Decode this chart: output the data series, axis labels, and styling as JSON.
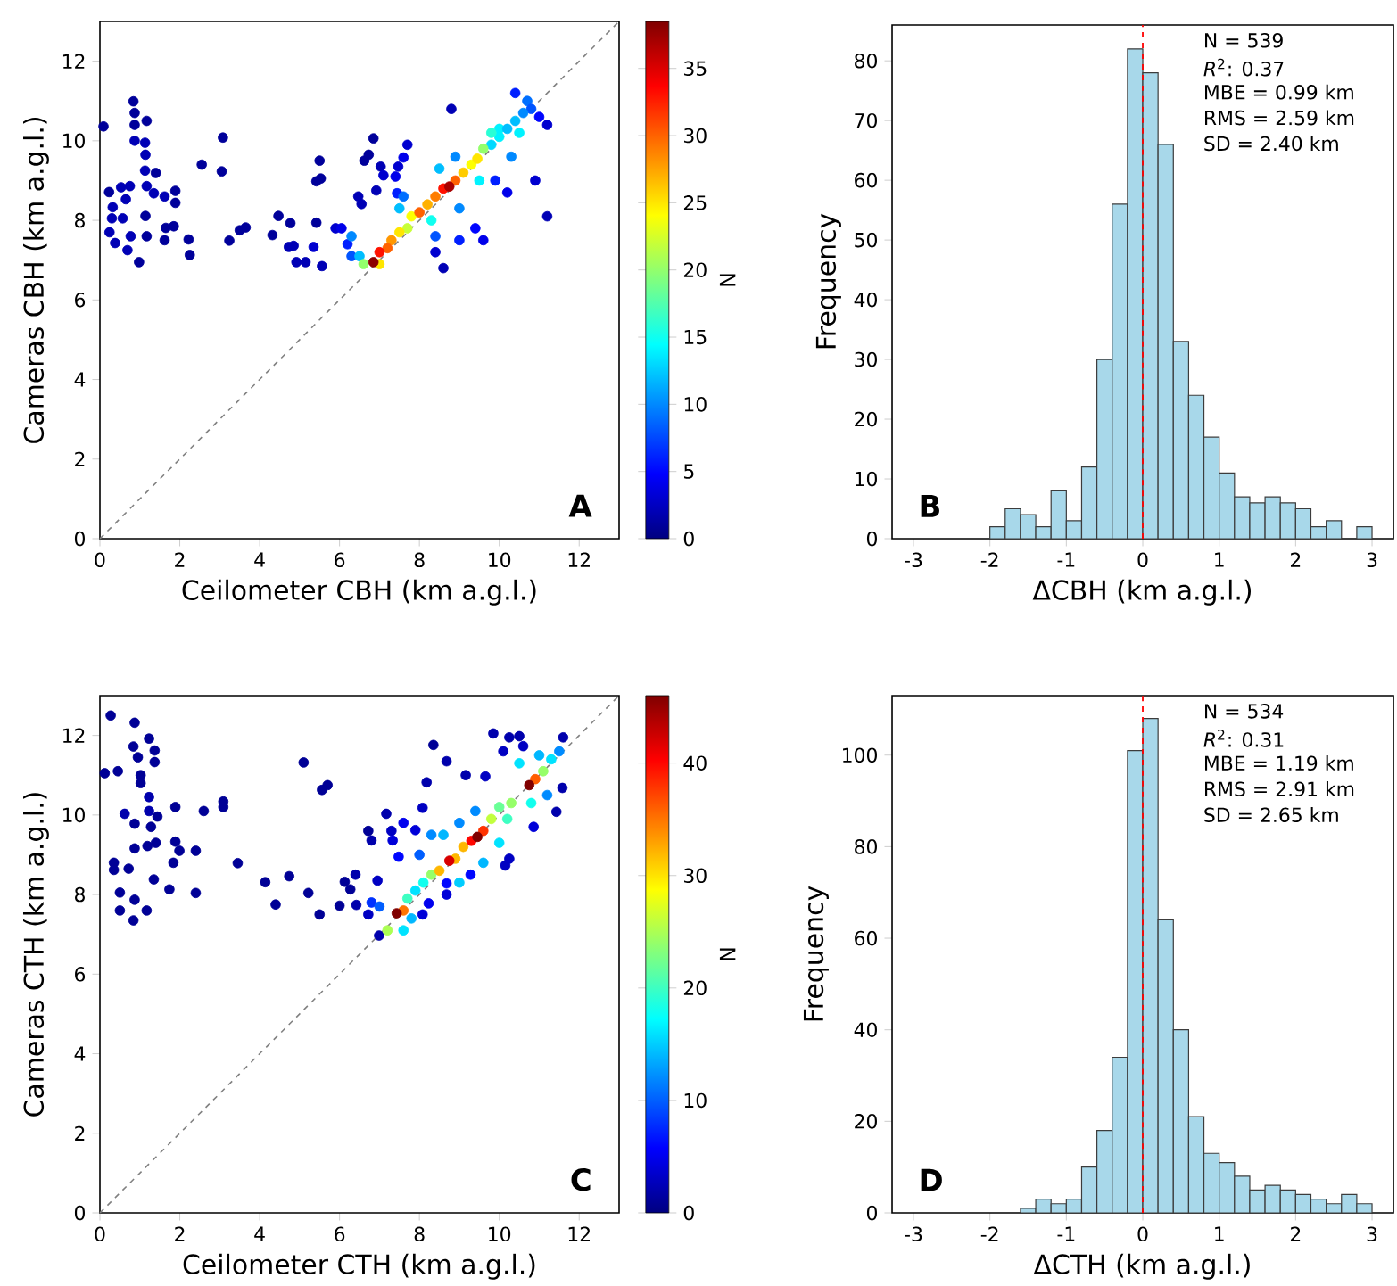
{
  "chart_data": [
    {
      "type": "scatter",
      "xlabel": "Ceilometer CBH (km a.g.l.)",
      "ylabel": "Cameras CBH (km a.g.l.)",
      "clabel": "N",
      "xlim": [
        0,
        13
      ],
      "ylim": [
        0,
        13
      ],
      "xticks": [
        0,
        2,
        4,
        6,
        8,
        10,
        12
      ],
      "yticks": [
        0,
        2,
        4,
        6,
        8,
        10,
        12
      ],
      "clim": [
        0,
        38.5
      ],
      "cticks": [
        0,
        5,
        10,
        15,
        20,
        25,
        30,
        35
      ],
      "marker": "circle",
      "annotations": [
        "A"
      ],
      "series": [
        {
          "type": "scatter",
          "x": [
            0.09,
            0.84,
            0.87,
            0.87,
            1.17,
            0.87,
            1.13,
            1.14,
            1.13,
            1.4,
            0.23,
            0.53,
            0.75,
            1.17,
            0.65,
            0.32,
            0.3,
            0.57,
            1.14,
            1.35,
            1.62,
            1.89,
            1.89,
            1.65,
            1.85,
            0.24,
            0.77,
            1.17,
            0.38,
            1.62,
            2.22,
            0.69,
            0.98,
            2.25,
            2.55,
            3.08,
            3.05,
            3.24,
            3.5,
            3.65,
            4.32,
            4.47,
            4.77,
            4.73,
            4.85,
            4.92,
            5.15,
            5.42,
            5.5,
            5.42,
            5.53,
            5.35,
            5.56,
            5.9,
            6.05,
            6.47,
            6.55,
            6.62,
            6.73,
            6.85,
            6.92,
            7.03,
            7.1,
            7.4,
            7.47,
            7.7,
            7.6,
            7.44,
            8.8,
            11.2,
            11.2,
            10.9,
            10.2,
            8.6,
            8.4,
            9.6,
            9.4,
            9.0,
            9.9,
            11.0,
            10.4,
            6.2,
            8.4,
            7.6,
            10.7,
            6.3,
            6.3,
            7.5,
            8.9,
            9.0,
            10.3,
            8.5,
            10.0,
            9.5,
            8.3,
            10.5,
            9.8,
            10.8,
            10.6,
            10.2,
            10.4,
            10.0,
            9.8,
            9.6,
            7.7,
            6.5,
            9.3,
            6.6,
            7.8,
            7.5,
            9.45,
            9.1,
            7.0,
            8.2,
            8.4,
            7.3,
            7.2,
            8.0,
            8.9,
            7.0,
            8.6,
            8.75,
            6.85
          ],
          "values": [
            10.36,
            10.99,
            10.7,
            10.4,
            10.5,
            10.0,
            9.95,
            9.65,
            9.25,
            9.19,
            8.71,
            8.83,
            8.86,
            8.86,
            8.53,
            8.33,
            8.05,
            8.05,
            8.11,
            8.68,
            8.6,
            8.74,
            8.44,
            7.81,
            7.85,
            7.7,
            7.6,
            7.6,
            7.43,
            7.5,
            7.52,
            7.25,
            6.95,
            7.13,
            9.4,
            10.08,
            9.23,
            7.49,
            7.75,
            7.82,
            7.63,
            8.11,
            7.93,
            7.33,
            7.36,
            6.95,
            6.95,
            7.94,
            9.5,
            8.98,
            9.05,
            7.33,
            6.85,
            7.8,
            7.8,
            8.6,
            8.41,
            9.5,
            9.65,
            10.06,
            8.75,
            9.35,
            9.13,
            9.1,
            9.35,
            9.9,
            9.58,
            8.68,
            10.8,
            8.1,
            10.4,
            9.0,
            8.7,
            6.8,
            7.2,
            7.5,
            7.8,
            7.5,
            9.0,
            10.6,
            11.2,
            7.4,
            7.6,
            8.6,
            11.0,
            7.1,
            7.6,
            8.3,
            9.6,
            8.3,
            9.6,
            9.3,
            10.3,
            9.0,
            8.0,
            10.2,
            9.9,
            10.8,
            10.7,
            10.3,
            10.5,
            10.1,
            10.2,
            9.8,
            7.8,
            7.1,
            9.4,
            6.9,
            8.1,
            7.7,
            9.55,
            9.2,
            6.9,
            8.4,
            8.6,
            7.5,
            7.3,
            8.2,
            9.0,
            7.2,
            8.8,
            8.85,
            6.95
          ],
          "colors": [
            "#00009a",
            "#00009a",
            "#00009a",
            "#00009a",
            "#00009a",
            "#0000b5",
            "#0000b5",
            "#0000b5",
            "#0000b5",
            "#00009a",
            "#00009a",
            "#0000b5",
            "#0000b5",
            "#0000b5",
            "#0000b5",
            "#0000b5",
            "#0000b5",
            "#0000b5",
            "#00009a",
            "#0000b5",
            "#0000b5",
            "#00009a",
            "#00009a",
            "#00009a",
            "#00009a",
            "#0000b5",
            "#0000b5",
            "#00009a",
            "#0000b5",
            "#00009a",
            "#00009a",
            "#0000b5",
            "#00009a",
            "#00009a",
            "#00009a",
            "#00009a",
            "#00009a",
            "#00009a",
            "#00009a",
            "#00009a",
            "#00009a",
            "#00009a",
            "#00009a",
            "#0000b5",
            "#0000b5",
            "#0000b5",
            "#0000b5",
            "#00009a",
            "#00009a",
            "#00009a",
            "#00009a",
            "#0000cf",
            "#0000b5",
            "#0000cf",
            "#0000e9",
            "#0000b5",
            "#0000b5",
            "#00009a",
            "#00009a",
            "#00009a",
            "#0000b5",
            "#0000b5",
            "#0000cf",
            "#0000e9",
            "#0000cf",
            "#0000cf",
            "#0000e9",
            "#001fff",
            "#0000b5",
            "#0000b5",
            "#0000cf",
            "#0000cf",
            "#0000e9",
            "#0000b5",
            "#0000cf",
            "#0000e9",
            "#0005ff",
            "#001fff",
            "#001fff",
            "#0005ff",
            "#001fff",
            "#001fff",
            "#0054ff",
            "#006fff",
            "#006fff",
            "#0054ff",
            "#0089ff",
            "#00beff",
            "#0089ff",
            "#0089ff",
            "#0089ff",
            "#00beff",
            "#00f3ff",
            "#00f3ff",
            "#0ffff0",
            "#00f3ff",
            "#00d9ff",
            "#0054ff",
            "#0089ff",
            "#00beff",
            "#00beff",
            "#00f3ff",
            "#29ffd6",
            "#93ff6c",
            "#c8ff37",
            "#00beff",
            "#fdff02",
            "#93ff6c",
            "#fdff02",
            "#ffe600",
            "#ffe600",
            "#ffcc00",
            "#ffe600",
            "#ffb100",
            "#ff7c00",
            "#ff9700",
            "#ff6200",
            "#ff6200",
            "#ff6200",
            "#ff1200",
            "#ff1200",
            "#a70000",
            "#8d0000"
          ],
          "cvalues": [
            1,
            1,
            1,
            1,
            1,
            2,
            2,
            2,
            2,
            1,
            1,
            2,
            2,
            2,
            2,
            2,
            2,
            2,
            1,
            2,
            2,
            1,
            1,
            1,
            1,
            2,
            2,
            1,
            2,
            1,
            1,
            2,
            1,
            1,
            1,
            1,
            1,
            1,
            1,
            1,
            1,
            1,
            1,
            2,
            2,
            2,
            2,
            1,
            1,
            1,
            1,
            3,
            2,
            3,
            4,
            2,
            2,
            1,
            1,
            1,
            2,
            2,
            3,
            4,
            3,
            3,
            4,
            6,
            2,
            2,
            3,
            3,
            4,
            2,
            3,
            4,
            5,
            6,
            6,
            5,
            6,
            6,
            8,
            9,
            9,
            8,
            10,
            12,
            10,
            10,
            10,
            12,
            14,
            14,
            15,
            14,
            13,
            8,
            10,
            12,
            12,
            14,
            16,
            20,
            22,
            12,
            24,
            20,
            24,
            25,
            25,
            26,
            25,
            27,
            29,
            28,
            30,
            30,
            30,
            33,
            33,
            37,
            38
          ]
        },
        {
          "type": "line",
          "x": [
            0,
            13
          ],
          "values": [
            0,
            13
          ],
          "color": "#808080",
          "line_style": "dashed",
          "marker": "none"
        }
      ]
    },
    {
      "type": "histogram",
      "xlabel": "ΔCBH (km a.g.l.)",
      "ylabel": "Frequency",
      "xlim": [
        -3.28,
        3.28
      ],
      "xticks": [
        -3,
        -2,
        -1,
        0,
        1,
        2,
        3
      ],
      "ylim": [
        0,
        86
      ],
      "yticks": [
        0,
        10,
        20,
        30,
        40,
        50,
        60,
        70,
        80
      ],
      "color": "#a8d8ea",
      "bins": [
        -2.0,
        -1.8,
        -1.6,
        -1.4,
        -1.2,
        -1.0,
        -0.8,
        -0.6,
        -0.4,
        -0.2,
        0.0,
        0.2,
        0.4,
        0.6,
        0.8,
        1.0,
        1.2,
        1.4,
        1.6,
        1.8,
        2.0,
        2.2,
        2.4,
        2.6,
        2.8,
        3.0
      ],
      "values": [
        2,
        5,
        4,
        2,
        8,
        3,
        12,
        30,
        56,
        82,
        78,
        66,
        33,
        24,
        17,
        11,
        7,
        6,
        7,
        6,
        5,
        2,
        3,
        0,
        2
      ],
      "ref_lines": [
        {
          "axis": "x",
          "value": 0,
          "color": "#ff0000",
          "line_style": "dashed"
        }
      ],
      "annotations": [
        "B",
        "N = 539",
        "*R*$^{2}$: 0.37",
        "MBE = 0.99 km",
        "RMS = 2.59 km",
        "SD = 2.40 km"
      ]
    },
    {
      "type": "scatter",
      "xlabel": "Ceilometer CTH (km a.g.l.)",
      "ylabel": "Cameras CTH (km a.g.l.)",
      "clabel": "N",
      "xlim": [
        0,
        13
      ],
      "ylim": [
        0,
        13
      ],
      "xticks": [
        0,
        2,
        4,
        6,
        8,
        10,
        12
      ],
      "yticks": [
        0,
        2,
        4,
        6,
        8,
        10,
        12
      ],
      "clim": [
        0,
        46
      ],
      "cticks": [
        0,
        10,
        20,
        30,
        40
      ],
      "marker": "circle",
      "annotations": [
        "C"
      ],
      "series": [
        {
          "type": "scatter",
          "x": [
            0.27,
            0.87,
            0.12,
            0.45,
            0.84,
            0.95,
            1.23,
            1.37,
            1.37,
            1.02,
            1.02,
            0.62,
            0.87,
            1.23,
            1.23,
            1.44,
            1.28,
            0.87,
            1.19,
            1.4,
            0.35,
            0.35,
            0.72,
            1.35,
            0.5,
            0.87,
            0.5,
            1.17,
            0.84,
            1.89,
            1.89,
            1.99,
            1.84,
            1.74,
            2.4,
            2.4,
            2.6,
            3.09,
            3.09,
            3.45,
            4.14,
            4.4,
            4.74,
            5.1,
            5.22,
            5.5,
            5.56,
            5.7,
            6.0,
            6.13,
            6.4,
            6.27,
            6.42,
            6.72,
            6.8,
            6.72,
            6.95,
            6.99,
            7.17,
            7.3,
            7.33,
            7.48,
            7.6,
            7.9,
            8.08,
            8.18,
            8.35,
            8.68,
            9.16,
            9.65,
            9.85,
            10.1,
            10.25,
            10.5,
            10.6,
            11.43,
            11.58,
            11.6,
            10.15,
            10.25,
            10.86,
            8.68,
            8.08,
            8.23,
            9.28,
            8.68,
            6.8,
            7.0,
            8.0,
            7.8,
            8.3,
            7.6,
            8.6,
            9.0,
            9.4,
            11.2,
            9.0,
            11.5,
            9.6,
            11.3,
            7.9,
            10.0,
            11.0,
            8.1,
            10.8,
            7.7,
            10.5,
            10.2,
            10.0,
            10.3,
            9.8,
            11.1,
            7.2,
            8.3,
            7.6,
            9.1,
            8.9,
            10.9,
            9.6,
            8.5,
            9.3,
            8.75,
            7.43,
            9.45,
            10.75
          ],
          "values": [
            12.5,
            12.32,
            11.05,
            11.1,
            11.72,
            11.45,
            11.92,
            11.62,
            11.33,
            11.0,
            10.8,
            10.03,
            9.78,
            10.45,
            10.1,
            9.96,
            9.7,
            9.16,
            9.22,
            9.3,
            8.8,
            8.62,
            8.65,
            8.38,
            8.05,
            7.87,
            7.6,
            7.6,
            7.35,
            10.2,
            9.33,
            9.1,
            8.8,
            8.13,
            9.1,
            8.04,
            10.1,
            10.34,
            10.2,
            8.79,
            8.31,
            7.75,
            8.46,
            11.32,
            8.04,
            7.5,
            10.63,
            10.75,
            7.72,
            8.32,
            8.5,
            8.13,
            7.74,
            9.6,
            9.36,
            7.5,
            8.35,
            6.97,
            10.03,
            9.6,
            9.36,
            8.95,
            9.8,
            9.62,
            10.18,
            10.82,
            11.76,
            11.35,
            11.0,
            10.97,
            12.05,
            11.6,
            11.95,
            11.98,
            11.73,
            10.08,
            10.68,
            11.95,
            8.73,
            8.9,
            9.7,
            8.0,
            7.5,
            7.78,
            8.5,
            8.28,
            7.8,
            7.7,
            9.0,
            7.4,
            9.5,
            7.1,
            9.5,
            8.3,
            10.1,
            10.5,
            9.8,
            11.6,
            8.8,
            11.4,
            8.1,
            9.3,
            11.5,
            8.3,
            10.3,
            7.9,
            11.3,
            9.9,
            10.2,
            10.3,
            9.9,
            11.1,
            7.1,
            8.5,
            7.6,
            9.2,
            8.9,
            10.9,
            9.6,
            8.6,
            9.35,
            8.85,
            7.53,
            9.45,
            10.75
          ],
          "colors": [
            "#000096",
            "#000096",
            "#000096",
            "#000096",
            "#000096",
            "#000096",
            "#000096",
            "#000096",
            "#000096",
            "#000096",
            "#000096",
            "#0000ac",
            "#000096",
            "#0000ac",
            "#0000ac",
            "#000096",
            "#000096",
            "#000096",
            "#000096",
            "#000096",
            "#000096",
            "#000096",
            "#000096",
            "#000096",
            "#000096",
            "#000096",
            "#000096",
            "#000096",
            "#000096",
            "#000096",
            "#000096",
            "#000096",
            "#000096",
            "#000096",
            "#000096",
            "#000096",
            "#000096",
            "#000096",
            "#000096",
            "#000096",
            "#000096",
            "#000096",
            "#000096",
            "#000096",
            "#000096",
            "#000096",
            "#000096",
            "#000096",
            "#000096",
            "#000096",
            "#0000ac",
            "#000096",
            "#0000ac",
            "#000096",
            "#0000ac",
            "#0000c2",
            "#0000c2",
            "#0000ac",
            "#0000ac",
            "#0000c2",
            "#0000d8",
            "#0006ff",
            "#0000ee",
            "#0000d8",
            "#0000c2",
            "#0000ac",
            "#000096",
            "#0000ac",
            "#0000ac",
            "#0000c2",
            "#0000ac",
            "#0000c2",
            "#0000ac",
            "#0000ac",
            "#0000c2",
            "#0000ac",
            "#0000ac",
            "#0000ac",
            "#0000c2",
            "#0000c2",
            "#0000d8",
            "#0000d8",
            "#0000d8",
            "#0000ee",
            "#0006ff",
            "#0006ff",
            "#0032ff",
            "#005eff",
            "#005eff",
            "#00b7ff",
            "#008bff",
            "#00e3ff",
            "#00b7ff",
            "#00cdff",
            "#008bff",
            "#008bff",
            "#008bff",
            "#008bff",
            "#00b7ff",
            "#00e3ff",
            "#00e3ff",
            "#00e3ff",
            "#00b7ff",
            "#11ffee",
            "#11ffee",
            "#3dffc2",
            "#00e3ff",
            "#3dffc2",
            "#69ff96",
            "#96ff69",
            "#c2ff3d",
            "#96ff69",
            "#acff53",
            "#96ff69",
            "#ff7500",
            "#ffb700",
            "#ffb700",
            "#ff5e00",
            "#ff3200",
            "#ffb700",
            "#ff0600",
            "#d80000",
            "#800000",
            "#800000",
            "#800000"
          ],
          "cvalues": [
            1,
            1,
            1,
            1,
            1,
            1,
            1,
            1,
            1,
            1,
            1,
            2,
            1,
            2,
            2,
            1,
            1,
            1,
            1,
            1,
            1,
            1,
            1,
            1,
            1,
            1,
            1,
            1,
            1,
            1,
            1,
            1,
            1,
            1,
            1,
            1,
            1,
            1,
            1,
            1,
            1,
            1,
            1,
            1,
            1,
            1,
            1,
            1,
            1,
            1,
            2,
            1,
            2,
            1,
            2,
            3,
            3,
            2,
            2,
            3,
            4,
            6,
            5,
            4,
            3,
            2,
            1,
            2,
            2,
            3,
            2,
            3,
            2,
            2,
            3,
            2,
            2,
            2,
            3,
            3,
            4,
            4,
            4,
            5,
            6,
            6,
            8,
            10,
            10,
            14,
            12,
            16,
            14,
            15,
            12,
            12,
            12,
            12,
            14,
            16,
            16,
            16,
            14,
            18,
            18,
            20,
            16,
            20,
            22,
            24,
            26,
            24,
            25,
            24,
            35,
            32,
            32,
            36,
            38,
            32,
            40,
            42,
            46,
            46,
            46
          ]
        },
        {
          "type": "line",
          "x": [
            0,
            13
          ],
          "values": [
            0,
            13
          ],
          "color": "#808080",
          "line_style": "dashed",
          "marker": "none"
        }
      ]
    },
    {
      "type": "histogram",
      "xlabel": "ΔCTH (km a.g.l.)",
      "ylabel": "Frequency",
      "xlim": [
        -3.28,
        3.28
      ],
      "xticks": [
        -3,
        -2,
        -1,
        0,
        1,
        2,
        3
      ],
      "ylim": [
        0,
        113
      ],
      "yticks": [
        0,
        20,
        40,
        60,
        80,
        100
      ],
      "color": "#a8d8ea",
      "bins": [
        -1.6,
        -1.4,
        -1.2,
        -1.0,
        -0.8,
        -0.6,
        -0.4,
        -0.2,
        0.0,
        0.2,
        0.4,
        0.6,
        0.8,
        1.0,
        1.2,
        1.4,
        1.6,
        1.8,
        2.0,
        2.2,
        2.4,
        2.6,
        2.8,
        3.0
      ],
      "values": [
        1,
        3,
        2,
        3,
        10,
        18,
        34,
        101,
        108,
        64,
        40,
        21,
        13,
        11,
        8,
        5,
        6,
        5,
        4,
        3,
        2,
        4,
        2
      ],
      "ref_lines": [
        {
          "axis": "x",
          "value": 0,
          "color": "#ff0000",
          "line_style": "dashed"
        }
      ],
      "annotations": [
        "D",
        "N = 534",
        "*R*$^{2}$: 0.31",
        "MBE = 1.19 km",
        "RMS = 2.91 km",
        "SD = 2.65 km"
      ]
    }
  ]
}
